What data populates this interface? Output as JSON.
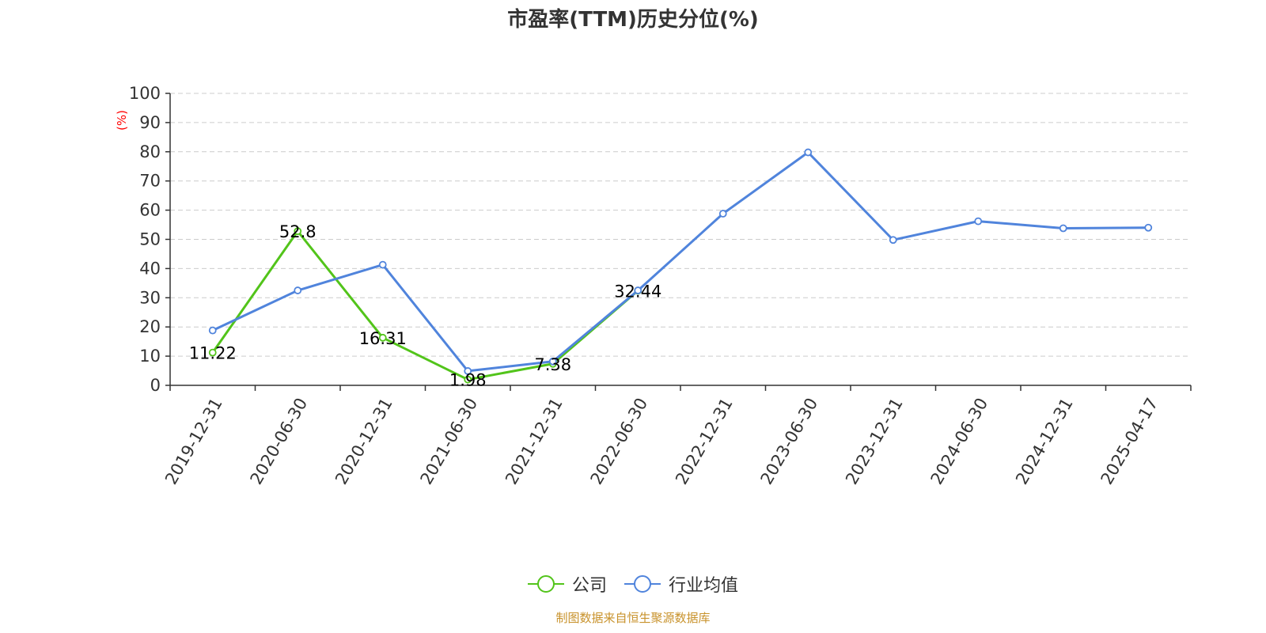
{
  "colors": {
    "company": "#52c41a",
    "industry": "#5084dc",
    "axis": "#333333",
    "grid": "#cccccc",
    "ylabel": "#ff0000"
  },
  "chart_data": {
    "type": "line",
    "title": "市盈率(TTM)历史分位(%)",
    "ylabel": "(%)",
    "ylim": [
      0,
      100
    ],
    "yticks": [
      0,
      10,
      20,
      30,
      40,
      50,
      60,
      70,
      80,
      90,
      100
    ],
    "grid": true,
    "legend_position": "bottom-center",
    "categories": [
      "2019-12-31",
      "2020-06-30",
      "2020-12-31",
      "2021-06-30",
      "2021-12-31",
      "2022-06-30",
      "2022-12-31",
      "2023-06-30",
      "2023-12-31",
      "2024-06-30",
      "2024-12-31",
      "2025-04-17"
    ],
    "series": [
      {
        "name": "公司",
        "values": [
          11.22,
          52.8,
          16.31,
          1.98,
          7.38,
          32.44,
          null,
          null,
          null,
          null,
          null,
          null
        ],
        "labels": [
          "11.22",
          "52.8",
          "16.31",
          "1.98",
          "7.38",
          "32.44"
        ]
      },
      {
        "name": "行业均值",
        "values": [
          18.8,
          32.5,
          41.3,
          4.9,
          8.2,
          32.5,
          58.8,
          79.8,
          49.8,
          56.2,
          53.8,
          54.0
        ]
      }
    ]
  },
  "source_text": "制图数据来自恒生聚源数据库"
}
